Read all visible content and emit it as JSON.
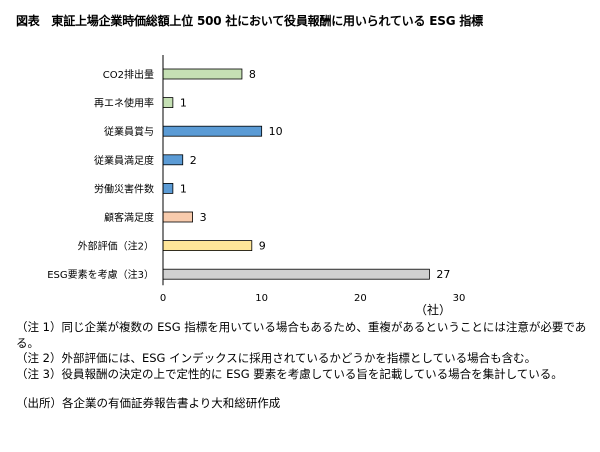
{
  "title": "図表　東証上場企業時価総額上位 500 社において役員報酬に用いられている ESG 指標",
  "chart_data": {
    "type": "bar",
    "orientation": "horizontal",
    "categories": [
      "CO2排出量",
      "再エネ使用率",
      "従業員賞与",
      "従業員満足度",
      "労働災害件数",
      "顧客満足度",
      "外部評価（注2）",
      "ESG要素を考慮（注3）"
    ],
    "values": [
      8,
      1,
      10,
      2,
      1,
      3,
      9,
      27
    ],
    "bar_colors": [
      "#c5e0b4",
      "#c5e0b4",
      "#5b9bd5",
      "#5b9bd5",
      "#5b9bd5",
      "#f8cbad",
      "#ffe699",
      "#d0d0d0"
    ],
    "xlim": [
      0,
      30
    ],
    "xticks": [
      0,
      10,
      20,
      30
    ],
    "unit_label": "（社）",
    "grid": false
  },
  "notes": [
    "（注 1）同じ企業が複数の ESG 指標を用いている場合もあるため、重複があるということには注意が必要である。",
    "（注 2）外部評価には、ESG インデックスに採用されているかどうかを指標としている場合も含む。",
    "（注 3）役員報酬の決定の上で定性的に ESG 要素を考慮している旨を記載している場合を集計している。"
  ],
  "source": "（出所）各企業の有価証券報告書より大和総研作成"
}
